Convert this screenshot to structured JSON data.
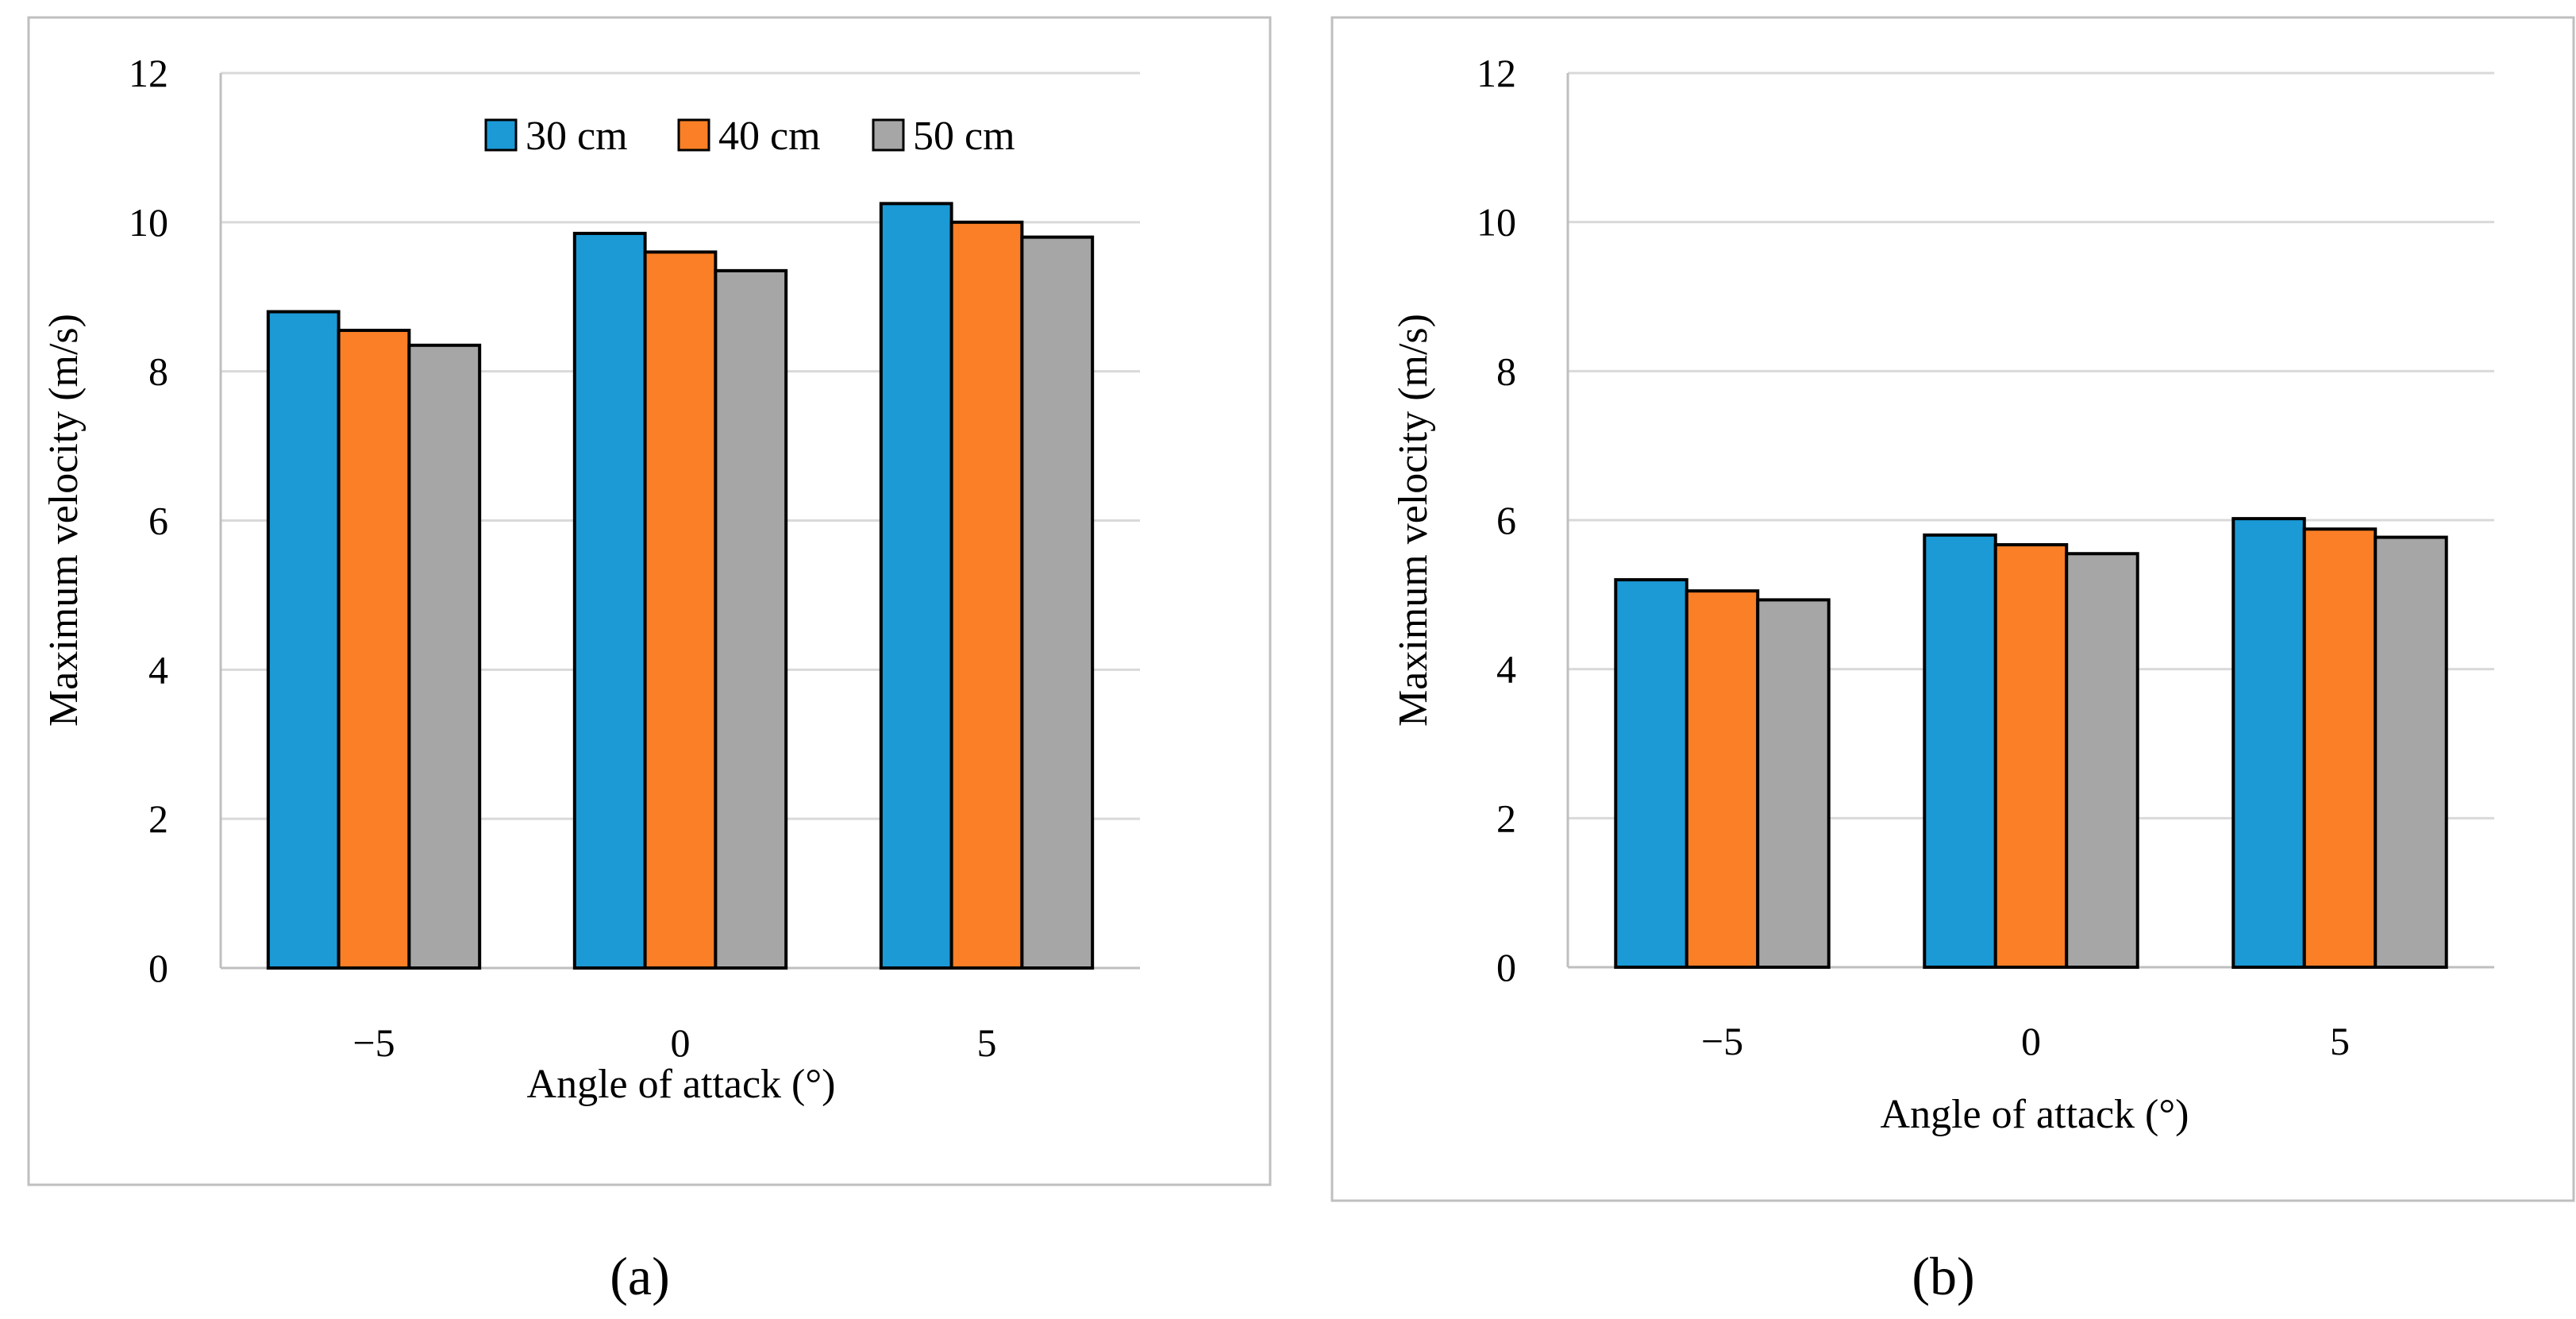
{
  "chart_data": [
    {
      "type": "bar",
      "panel": "a",
      "caption": "(a)",
      "categories": [
        "−5",
        "0",
        "5"
      ],
      "series": [
        {
          "name": "30 cm",
          "values": [
            8.8,
            9.85,
            10.25
          ]
        },
        {
          "name": "40 cm",
          "values": [
            8.55,
            9.6,
            10.0
          ]
        },
        {
          "name": "50 cm",
          "values": [
            8.35,
            9.35,
            9.8
          ]
        }
      ],
      "xlabel": "Angle of attack (°)",
      "ylabel": "Maximum velocity (m/s)",
      "ylim": [
        0,
        12
      ],
      "yticks": [
        "0",
        "2",
        "4",
        "6",
        "8",
        "10",
        "12"
      ],
      "grid": true,
      "legend": "top-right"
    },
    {
      "type": "bar",
      "panel": "b",
      "caption": "(b)",
      "categories": [
        "−5",
        "0",
        "5"
      ],
      "series": [
        {
          "name": "30 cm",
          "values": [
            5.2,
            5.8,
            6.02
          ]
        },
        {
          "name": "40 cm",
          "values": [
            5.05,
            5.67,
            5.88
          ]
        },
        {
          "name": "50 cm",
          "values": [
            4.93,
            5.55,
            5.77
          ]
        }
      ],
      "xlabel": "Angle of attack (°)",
      "ylabel": "Maximum velocity (m/s)",
      "ylim": [
        0,
        12
      ],
      "yticks": [
        "0",
        "2",
        "4",
        "6",
        "8",
        "10",
        "12"
      ],
      "grid": true,
      "legend": "none"
    }
  ],
  "colors": {
    "30 cm": "#1b9ad6",
    "40 cm": "#fb7f26",
    "50 cm": "#a6a6a6"
  }
}
